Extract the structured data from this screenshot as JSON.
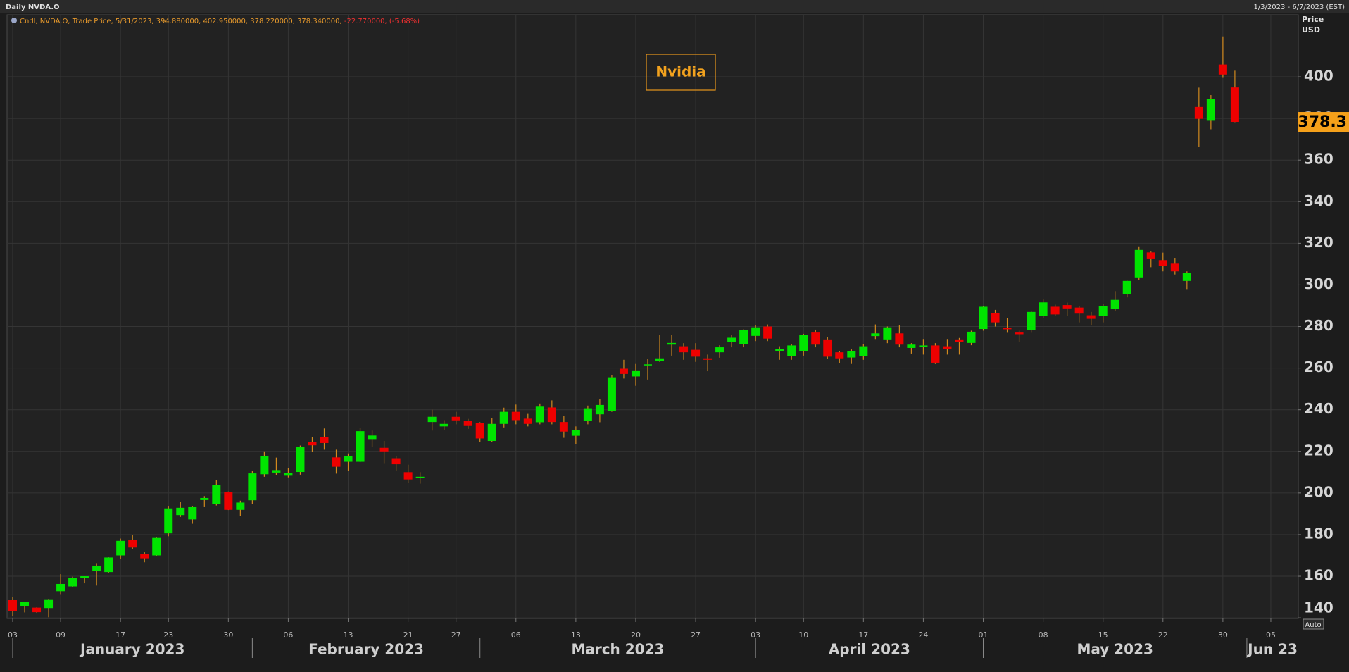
{
  "chart_data": {
    "type": "candlestick",
    "window_title": "Daily NVDA.O",
    "date_range": "1/3/2023 - 6/7/2023 (EST)",
    "legend": {
      "label": "Cndl, NVDA.O, Trade Price, 5/31/2023, 394.880000, 402.950000, 378.220000, 378.340000,",
      "change": "-22.770000, (-5.68%)"
    },
    "annotation": "Nvidia",
    "y_axis_label": "Price",
    "y_axis_unit": "USD",
    "scale_button": "Auto",
    "last_price": {
      "value": 378.34,
      "label": "378.3"
    },
    "up_color": "#00e400",
    "down_color": "#ee0000",
    "wick_color": "#d28a1e",
    "grid": true,
    "x": [
      "2023-01-03",
      "2023-01-04",
      "2023-01-05",
      "2023-01-06",
      "2023-01-09",
      "2023-01-10",
      "2023-01-11",
      "2023-01-12",
      "2023-01-13",
      "2023-01-17",
      "2023-01-18",
      "2023-01-19",
      "2023-01-20",
      "2023-01-23",
      "2023-01-24",
      "2023-01-25",
      "2023-01-26",
      "2023-01-27",
      "2023-01-30",
      "2023-01-31",
      "2023-02-01",
      "2023-02-02",
      "2023-02-03",
      "2023-02-06",
      "2023-02-07",
      "2023-02-08",
      "2023-02-09",
      "2023-02-10",
      "2023-02-13",
      "2023-02-14",
      "2023-02-15",
      "2023-02-16",
      "2023-02-17",
      "2023-02-21",
      "2023-02-22",
      "2023-02-23",
      "2023-02-24",
      "2023-02-27",
      "2023-02-28",
      "2023-03-01",
      "2023-03-02",
      "2023-03-03",
      "2023-03-06",
      "2023-03-07",
      "2023-03-08",
      "2023-03-09",
      "2023-03-10",
      "2023-03-13",
      "2023-03-14",
      "2023-03-15",
      "2023-03-16",
      "2023-03-17",
      "2023-03-20",
      "2023-03-21",
      "2023-03-22",
      "2023-03-23",
      "2023-03-24",
      "2023-03-27",
      "2023-03-28",
      "2023-03-29",
      "2023-03-30",
      "2023-03-31",
      "2023-04-03",
      "2023-04-04",
      "2023-04-05",
      "2023-04-06",
      "2023-04-10",
      "2023-04-11",
      "2023-04-12",
      "2023-04-13",
      "2023-04-14",
      "2023-04-17",
      "2023-04-18",
      "2023-04-19",
      "2023-04-20",
      "2023-04-21",
      "2023-04-24",
      "2023-04-25",
      "2023-04-26",
      "2023-04-27",
      "2023-04-28",
      "2023-05-01",
      "2023-05-02",
      "2023-05-03",
      "2023-05-04",
      "2023-05-05",
      "2023-05-08",
      "2023-05-09",
      "2023-05-10",
      "2023-05-11",
      "2023-05-12",
      "2023-05-15",
      "2023-05-16",
      "2023-05-17",
      "2023-05-18",
      "2023-05-19",
      "2023-05-22",
      "2023-05-23",
      "2023-05-24",
      "2023-05-25",
      "2023-05-26",
      "2023-05-30",
      "2023-05-31"
    ],
    "open": [
      148.5,
      145.7,
      144.9,
      144.7,
      152.8,
      155.1,
      159.0,
      162.6,
      162.0,
      170.0,
      177.5,
      170.5,
      170.0,
      180.6,
      189.4,
      187.3,
      196.6,
      194.6,
      200.3,
      191.9,
      196.5,
      209.0,
      209.8,
      208.3,
      210.1,
      224.4,
      226.7,
      217.1,
      215.0,
      215.0,
      225.9,
      221.7,
      216.7,
      210.0,
      207.3,
      234.1,
      232.0,
      236.6,
      234.6,
      233.5,
      225.0,
      233.2,
      239.0,
      235.7,
      234.0,
      241.1,
      234.1,
      227.5,
      234.5,
      237.8,
      239.5,
      259.7,
      256.0,
      261.4,
      263.5,
      271.3,
      270.5,
      268.8,
      264.7,
      267.6,
      272.5,
      271.7,
      275.5,
      280.0,
      268.0,
      265.9,
      268.0,
      277.1,
      273.8,
      267.6,
      265.1,
      265.9,
      275.4,
      273.8,
      276.7,
      269.7,
      270.1,
      270.9,
      270.5,
      273.8,
      272.1,
      278.8,
      286.6,
      279.2,
      277.1,
      278.3,
      285.0,
      289.5,
      290.3,
      289.1,
      285.4,
      285.0,
      288.3,
      295.7,
      303.6,
      315.6,
      311.9,
      310.2,
      301.9,
      385.5,
      378.9,
      405.9,
      394.88
    ],
    "high": [
      150.0,
      147.5,
      145.0,
      148.8,
      161.0,
      159.8,
      160.0,
      166.3,
      169.1,
      178.1,
      179.7,
      171.5,
      178.6,
      193.5,
      195.7,
      193.5,
      198.5,
      206.3,
      200.7,
      196.3,
      210.7,
      220.0,
      217.0,
      212.0,
      222.8,
      227.0,
      231.0,
      220.8,
      219.0,
      231.4,
      230.0,
      225.0,
      217.6,
      213.6,
      210.0,
      240.0,
      235.0,
      239.0,
      235.6,
      234.0,
      236.0,
      241.0,
      242.5,
      238.0,
      243.0,
      244.5,
      237.0,
      232.0,
      242.0,
      245.0,
      256.5,
      264.0,
      262.0,
      264.5,
      276.0,
      276.0,
      272.0,
      272.0,
      266.5,
      271.0,
      276.0,
      278.6,
      280.5,
      281.0,
      270.5,
      271.5,
      276.5,
      278.5,
      275.0,
      268.0,
      269.0,
      271.5,
      281.0,
      280.0,
      280.5,
      272.0,
      274.0,
      272.0,
      274.0,
      274.5,
      278.0,
      290.0,
      288.0,
      284.0,
      278.0,
      287.5,
      293.0,
      290.5,
      291.5,
      290.0,
      287.0,
      291.0,
      297.0,
      302.0,
      318.5,
      316.0,
      315.5,
      313.0,
      306.5,
      394.8,
      391.2,
      419.4,
      402.95
    ],
    "low": [
      141.0,
      142.6,
      142.5,
      140.3,
      151.4,
      154.8,
      156.6,
      155.5,
      161.6,
      168.3,
      173.2,
      166.7,
      169.8,
      179.2,
      188.5,
      185.2,
      193.2,
      194.0,
      191.8,
      189.1,
      194.7,
      207.8,
      208.6,
      207.5,
      208.8,
      219.6,
      220.8,
      209.3,
      210.7,
      214.8,
      222.0,
      214.0,
      210.8,
      205.0,
      204.5,
      230.0,
      230.2,
      233.0,
      230.8,
      224.5,
      224.5,
      231.5,
      233.0,
      232.0,
      233.0,
      233.0,
      226.5,
      223.5,
      233.0,
      234.0,
      239.0,
      255.0,
      251.5,
      254.5,
      263.0,
      266.0,
      264.0,
      263.0,
      258.5,
      265.0,
      270.0,
      270.0,
      273.0,
      273.0,
      264.0,
      264.0,
      266.0,
      270.0,
      264.5,
      262.5,
      262.0,
      264.0,
      274.0,
      272.0,
      270.0,
      267.0,
      266.5,
      262.0,
      266.5,
      266.5,
      271.0,
      278.0,
      280.0,
      277.0,
      272.5,
      277.0,
      284.0,
      285.0,
      285.0,
      282.0,
      280.5,
      282.0,
      287.5,
      294.0,
      302.5,
      308.5,
      306.5,
      305.0,
      298.0,
      366.3,
      374.8,
      399.5,
      378.22
    ],
    "close": [
      143.2,
      147.5,
      142.7,
      148.6,
      156.3,
      159.1,
      160.0,
      165.1,
      169.0,
      177.0,
      173.8,
      168.6,
      178.4,
      192.6,
      192.9,
      193.2,
      197.6,
      203.7,
      191.9,
      195.4,
      209.4,
      217.9,
      211.0,
      209.5,
      222.3,
      222.9,
      224.0,
      212.6,
      217.9,
      229.7,
      227.6,
      220.0,
      213.8,
      206.5,
      207.8,
      236.6,
      233.2,
      234.9,
      232.2,
      226.2,
      233.2,
      239.0,
      235.0,
      233.2,
      241.5,
      234.1,
      229.5,
      230.3,
      240.7,
      242.3,
      255.6,
      257.2,
      258.9,
      261.8,
      264.7,
      272.1,
      267.6,
      265.5,
      264.0,
      270.0,
      274.6,
      278.3,
      279.6,
      274.2,
      269.2,
      270.9,
      275.9,
      271.3,
      265.5,
      264.7,
      268.0,
      270.5,
      276.7,
      279.6,
      271.3,
      271.3,
      270.9,
      262.6,
      269.2,
      272.5,
      277.5,
      289.5,
      282.0,
      278.8,
      276.3,
      287.0,
      291.6,
      285.8,
      288.7,
      286.2,
      283.7,
      289.9,
      292.8,
      301.9,
      316.8,
      312.7,
      309.0,
      306.5,
      305.7,
      379.8,
      389.5,
      401.1,
      378.34
    ],
    "xlim": [
      "2023-01-03",
      "2023-06-07"
    ],
    "xticks": [
      {
        "value": "2023-01-03",
        "label": "03"
      },
      {
        "value": "2023-01-09",
        "label": "09"
      },
      {
        "value": "2023-01-17",
        "label": "17"
      },
      {
        "value": "2023-01-23",
        "label": "23"
      },
      {
        "value": "2023-01-30",
        "label": "30"
      },
      {
        "value": "2023-02-06",
        "label": "06"
      },
      {
        "value": "2023-02-13",
        "label": "13"
      },
      {
        "value": "2023-02-21",
        "label": "21"
      },
      {
        "value": "2023-02-27",
        "label": "27"
      },
      {
        "value": "2023-03-06",
        "label": "06"
      },
      {
        "value": "2023-03-13",
        "label": "13"
      },
      {
        "value": "2023-03-20",
        "label": "20"
      },
      {
        "value": "2023-03-27",
        "label": "27"
      },
      {
        "value": "2023-04-03",
        "label": "03"
      },
      {
        "value": "2023-04-10",
        "label": "10"
      },
      {
        "value": "2023-04-17",
        "label": "17"
      },
      {
        "value": "2023-04-24",
        "label": "24"
      },
      {
        "value": "2023-05-01",
        "label": "01"
      },
      {
        "value": "2023-05-08",
        "label": "08"
      },
      {
        "value": "2023-05-15",
        "label": "15"
      },
      {
        "value": "2023-05-22",
        "label": "22"
      },
      {
        "value": "2023-05-30",
        "label": "30"
      },
      {
        "value": "2023-06-05",
        "label": "05"
      }
    ],
    "months": [
      {
        "value": "2023-01",
        "label": "January 2023"
      },
      {
        "value": "2023-02",
        "label": "February 2023"
      },
      {
        "value": "2023-03",
        "label": "March 2023"
      },
      {
        "value": "2023-04",
        "label": "April 2023"
      },
      {
        "value": "2023-05",
        "label": "May 2023"
      },
      {
        "value": "2023-06",
        "label": "Jun 23"
      }
    ],
    "ylim": [
      139.7,
      429.8
    ],
    "yticks": [
      140,
      160,
      180,
      200,
      220,
      240,
      260,
      280,
      300,
      320,
      340,
      360,
      380,
      400
    ]
  }
}
